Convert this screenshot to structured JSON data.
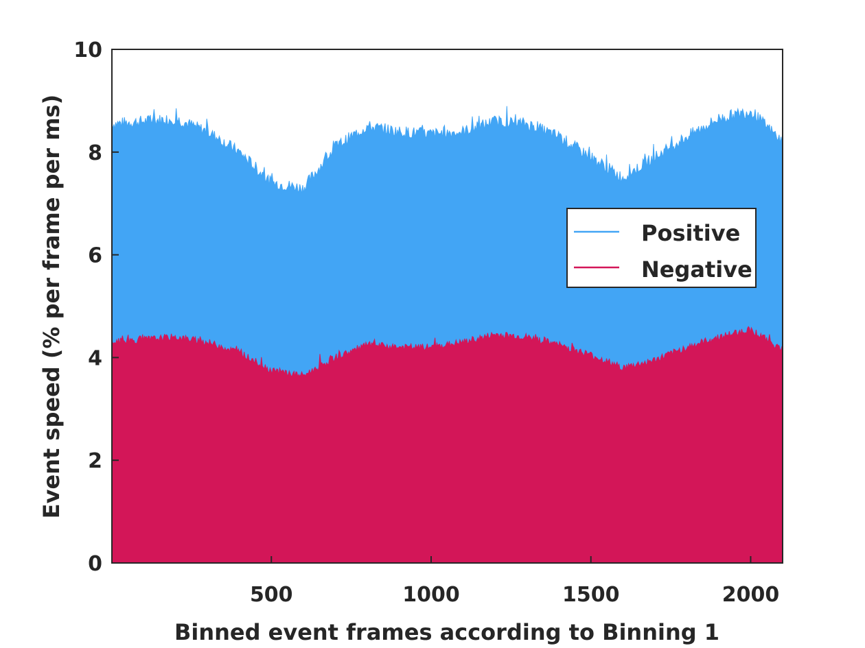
{
  "chart_data": {
    "type": "area",
    "title": "",
    "xlabel": "Binned event frames according to Binning 1",
    "ylabel": "Event speed (% per frame per ms)",
    "xlim": [
      1,
      2100
    ],
    "ylim": [
      0,
      10
    ],
    "x_ticks": [
      500,
      1000,
      1500,
      2000
    ],
    "y_ticks": [
      0,
      2,
      4,
      6,
      8,
      10
    ],
    "grid": false,
    "legend_position": "right-middle",
    "x_step": 100,
    "series": [
      {
        "name": "Positive",
        "color": "#42a5f5",
        "x": [
          1,
          100,
          200,
          300,
          400,
          500,
          600,
          700,
          800,
          900,
          1000,
          1100,
          1200,
          1300,
          1400,
          1500,
          1600,
          1700,
          1800,
          1900,
          2000,
          2100
        ],
        "values": [
          8.55,
          8.6,
          8.65,
          8.4,
          8.0,
          7.4,
          7.3,
          8.1,
          8.5,
          8.4,
          8.35,
          8.4,
          8.6,
          8.55,
          8.3,
          7.9,
          7.5,
          7.9,
          8.3,
          8.65,
          8.8,
          8.2
        ],
        "noise_amplitude": 0.12
      },
      {
        "name": "Negative",
        "color": "#d31658",
        "x": [
          1,
          100,
          200,
          300,
          400,
          500,
          600,
          700,
          800,
          900,
          1000,
          1100,
          1200,
          1300,
          1400,
          1500,
          1600,
          1700,
          1800,
          1900,
          2000,
          2100
        ],
        "values": [
          4.3,
          4.35,
          4.4,
          4.3,
          4.1,
          3.75,
          3.65,
          4.0,
          4.25,
          4.2,
          4.2,
          4.3,
          4.45,
          4.4,
          4.25,
          4.05,
          3.8,
          3.95,
          4.2,
          4.4,
          4.55,
          4.15
        ],
        "noise_amplitude": 0.07
      }
    ]
  }
}
